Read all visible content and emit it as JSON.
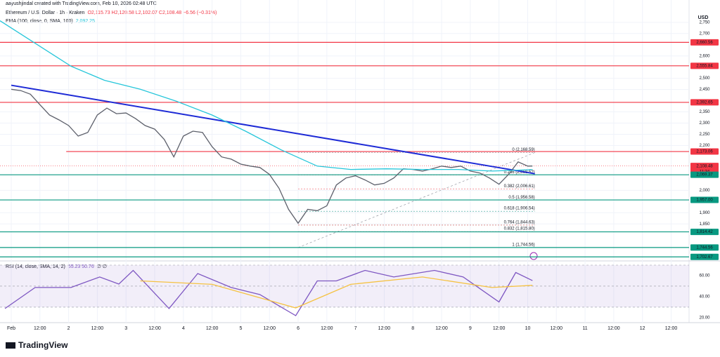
{
  "header": {
    "credit": "aayushjindal created with TradingView.com, Feb 10, 2026 02:48 UTC",
    "symbol": "Ethereum / U.S. Dollar · 1h · Kraken",
    "ohlc": "O2,115.73 H2,120.58 L2,102.07 C2,108.48 −6.56 (−0.31%)",
    "ema_value": "2,092.25",
    "rsi_values": "55.23  50.76",
    "rsi_extra": "∅ ∅",
    "currency": "USD",
    "countdown": "11:34",
    "logo": "TradingView"
  },
  "chart_data": [
    {
      "type": "line",
      "xlim": [
        -4.7,
        283.5
      ],
      "ylim": [
        1691,
        2787
      ],
      "grid": true,
      "xticks": [
        {
          "value": 0,
          "label": "Feb"
        },
        {
          "value": 12,
          "label": "12:00"
        },
        {
          "value": 24,
          "label": "2"
        },
        {
          "value": 36,
          "label": "12:00"
        },
        {
          "value": 48,
          "label": "3"
        },
        {
          "value": 60,
          "label": "12:00"
        },
        {
          "value": 72,
          "label": "4"
        },
        {
          "value": 84,
          "label": "12:00"
        },
        {
          "value": 96,
          "label": "5"
        },
        {
          "value": 108,
          "label": "12:00"
        },
        {
          "value": 120,
          "label": "6"
        },
        {
          "value": 132,
          "label": "12:00"
        },
        {
          "value": 144,
          "label": "7"
        },
        {
          "value": 156,
          "label": "12:00"
        },
        {
          "value": 168,
          "label": "8"
        },
        {
          "value": 180,
          "label": "12:00"
        },
        {
          "value": 192,
          "label": "9"
        },
        {
          "value": 204,
          "label": "12:00"
        },
        {
          "value": 216,
          "label": "10"
        },
        {
          "value": 228,
          "label": "12:00"
        },
        {
          "value": 240,
          "label": "11"
        },
        {
          "value": 252,
          "label": "12:00"
        },
        {
          "value": 264,
          "label": "12"
        },
        {
          "value": 276,
          "label": "12:00"
        }
      ],
      "yticks": [
        {
          "value": 2750,
          "label": "2,750"
        },
        {
          "value": 2700,
          "label": "2,700"
        },
        {
          "value": 2600,
          "label": "2,600"
        },
        {
          "value": 2500,
          "label": "2,500"
        },
        {
          "value": 2450,
          "label": "2,450"
        },
        {
          "value": 2350,
          "label": "2,350"
        },
        {
          "value": 2300,
          "label": "2,300"
        },
        {
          "value": 2250,
          "label": "2,250"
        },
        {
          "value": 2200,
          "label": "2,200"
        },
        {
          "value": 2000,
          "label": "2,000"
        },
        {
          "value": 1900,
          "label": "1,900"
        },
        {
          "value": 1850,
          "label": "1,850"
        }
      ],
      "series": [
        {
          "name": "Ethereum / U.S. Dollar",
          "color": "#5d606b",
          "x": [
            0,
            4,
            8,
            12,
            16,
            20,
            24,
            28,
            32,
            36,
            40,
            44,
            48,
            52,
            56,
            60,
            64,
            68,
            72,
            76,
            80,
            84,
            88,
            92,
            96,
            100,
            104,
            108,
            112,
            116,
            120,
            124,
            128,
            132,
            136,
            140,
            144,
            148,
            152,
            156,
            160,
            164,
            168,
            172,
            176,
            180,
            184,
            188,
            192,
            196,
            200,
            204,
            208,
            212,
            216,
            218
          ],
          "values": [
            2451,
            2445,
            2429,
            2382,
            2336,
            2314,
            2289,
            2242,
            2258,
            2336,
            2367,
            2342,
            2345,
            2320,
            2289,
            2273,
            2227,
            2149,
            2242,
            2264,
            2258,
            2195,
            2149,
            2139,
            2117,
            2108,
            2102,
            2071,
            2009,
            1915,
            1853,
            1915,
            1909,
            1931,
            2024,
            2055,
            2065,
            2046,
            2024,
            2031,
            2055,
            2096,
            2093,
            2086,
            2096,
            2108,
            2102,
            2108,
            2086,
            2077,
            2055,
            2027,
            2071,
            2127,
            2108,
            2108.48
          ]
        },
        {
          "name": "EMA (100, close, 0, SMA, 100)",
          "color": "#26c6da",
          "x": [
            -4.7,
            25,
            39,
            54,
            69,
            84,
            98,
            113,
            128,
            142,
            157,
            172,
            187,
            201,
            218
          ],
          "values": [
            2757,
            2554,
            2491,
            2451,
            2398,
            2336,
            2264,
            2180,
            2108,
            2093,
            2096,
            2093,
            2093,
            2086,
            2092.25
          ]
        }
      ],
      "levels": [
        {
          "value": 2660.56,
          "label": "2,660.56",
          "color": "#f23645"
        },
        {
          "value": 2555.84,
          "label": "2,555.84",
          "color": "#f23645"
        },
        {
          "value": 2392.65,
          "label": "2,392.65",
          "color": "#f23645"
        },
        {
          "value": 2173.06,
          "label": "2,173.06",
          "color": "#f23645",
          "from": 23
        },
        {
          "value": 2108.48,
          "label": "2,108.48",
          "color": "#f23645",
          "current": true
        },
        {
          "value": 2069.37,
          "label": "2,069.37",
          "color": "#089981"
        },
        {
          "value": 1957.0,
          "label": "1,957.00",
          "color": "#089981"
        },
        {
          "value": 1814.42,
          "label": "1,814.42",
          "color": "#089981"
        },
        {
          "value": 1744.56,
          "label": "1,744.56",
          "color": "#089981"
        },
        {
          "value": 1702.67,
          "label": "1,702.67",
          "color": "#089981"
        }
      ],
      "trendline": {
        "color": "#1e2bd6",
        "x": [
          0,
          219
        ],
        "values": [
          2469,
          2074
        ]
      },
      "fib": {
        "x": [
          120,
          219
        ],
        "levels": [
          {
            "value": 2168.59,
            "label": "0 (2,168.59)",
            "color": "#787b86"
          },
          {
            "value": 2068.52,
            "label": "0.236 (2,068.52)",
            "color": "#f23645"
          },
          {
            "value": 2006.61,
            "label": "0.382 (2,006.61)",
            "color": "#f23645"
          },
          {
            "value": 1956.58,
            "label": "0.5 (1,956.58)",
            "color": "#089981"
          },
          {
            "value": 1906.54,
            "label": "0.618 (1,906.54)",
            "color": "#00897b"
          },
          {
            "value": 1844.63,
            "label": "0.764 (1,844.63)",
            "color": "#b71c1c"
          },
          {
            "value": 1815.8,
            "label": "0.832 (1,815.80)",
            "color": "#f23645"
          },
          {
            "value": 1744.56,
            "label": "1 (1,744.56)",
            "color": "#5b9cf6"
          }
        ]
      }
    },
    {
      "type": "line",
      "xlim": [
        -4.7,
        283.5
      ],
      "ylim": [
        15.3,
        74
      ],
      "band": [
        30,
        70
      ],
      "hlines": [
        70,
        50,
        30
      ],
      "yticks": [
        {
          "value": 60,
          "label": "60.00"
        },
        {
          "value": 40,
          "label": "40.00"
        },
        {
          "value": 20,
          "label": "20.00"
        }
      ],
      "series": [
        {
          "name": "RSI (14, close, SMA, 14, 2)",
          "color": "#7e57c2",
          "x": [
            -2.6,
            10,
            25,
            37,
            45,
            51,
            66,
            78,
            92,
            104,
            119,
            128,
            136,
            148,
            160,
            177,
            189,
            204,
            211,
            218
          ],
          "values": [
            28.7,
            48.7,
            48.7,
            58.7,
            52,
            65,
            28.7,
            62,
            48.7,
            42,
            22,
            55,
            55,
            65,
            58.7,
            65,
            58.7,
            35,
            63,
            55.23
          ]
        },
        {
          "color": "#f5c242",
          "x": [
            54,
            84,
            119,
            142,
            172,
            201,
            218
          ],
          "values": [
            55,
            51.7,
            29.3,
            51.7,
            58.7,
            48.7,
            50.76
          ]
        }
      ]
    }
  ]
}
